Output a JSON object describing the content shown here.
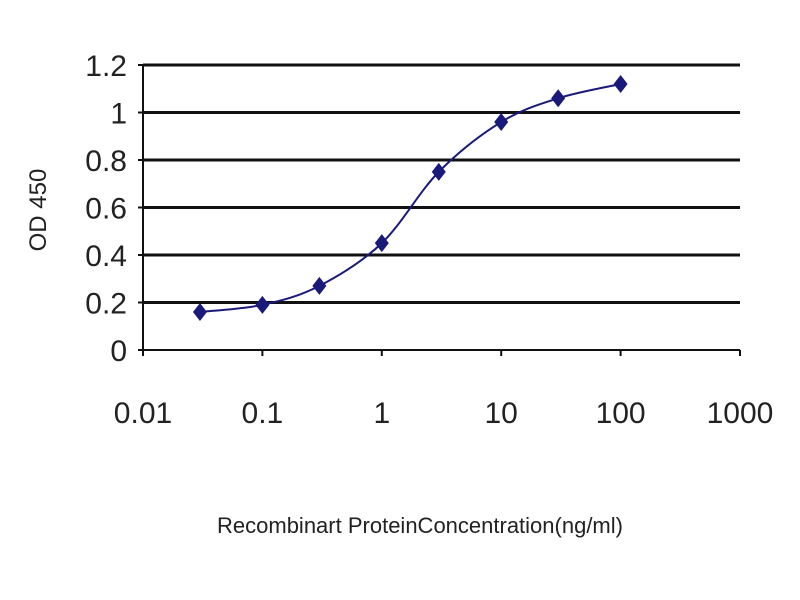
{
  "chart_data": {
    "type": "line",
    "title": "",
    "xlabel": "Recombinart ProteinConcentration(ng/ml)",
    "ylabel": "OD 450",
    "x_scale": "log",
    "xlim": [
      0.01,
      1000
    ],
    "ylim": [
      0,
      1.2
    ],
    "x_ticks": [
      "0.01",
      "0.1",
      "1",
      "10",
      "100",
      "1000"
    ],
    "y_ticks": [
      "0",
      "0.2",
      "0.4",
      "0.6",
      "0.8",
      "1",
      "1.2"
    ],
    "grid": "horizontal",
    "legend": "none",
    "series": [
      {
        "x": [
          0.03,
          0.1,
          0.3,
          1,
          3,
          10,
          30,
          100
        ],
        "y": [
          0.16,
          0.19,
          0.27,
          0.45,
          0.75,
          0.96,
          1.06,
          1.12
        ],
        "color": "#1a1a7a",
        "marker": "diamond"
      }
    ]
  }
}
